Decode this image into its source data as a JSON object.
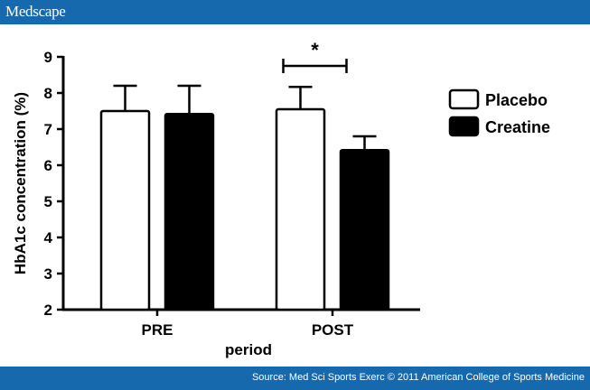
{
  "header": {
    "logo": "Medscape"
  },
  "footer": {
    "source": "Source: Med Sci Sports Exerc © 2011 American College of Sports Medicine"
  },
  "chart_data": {
    "type": "bar",
    "title": "",
    "xlabel": "period",
    "ylabel": "HbA1c concentration (%)",
    "ylim": [
      2,
      9
    ],
    "yticks": [
      "2",
      "3",
      "4",
      "5",
      "6",
      "7",
      "8",
      "9"
    ],
    "categories": [
      "PRE",
      "POST"
    ],
    "series": [
      {
        "name": "Placebo",
        "values": [
          7.5,
          7.55
        ],
        "error": [
          0.7,
          0.62
        ],
        "fill": "#ffffff"
      },
      {
        "name": "Creatine",
        "values": [
          7.42,
          6.42
        ],
        "error": [
          0.78,
          0.38
        ],
        "fill": "#000000"
      }
    ],
    "annotation": {
      "text": "*",
      "category": "POST"
    },
    "legend_position": "right"
  }
}
